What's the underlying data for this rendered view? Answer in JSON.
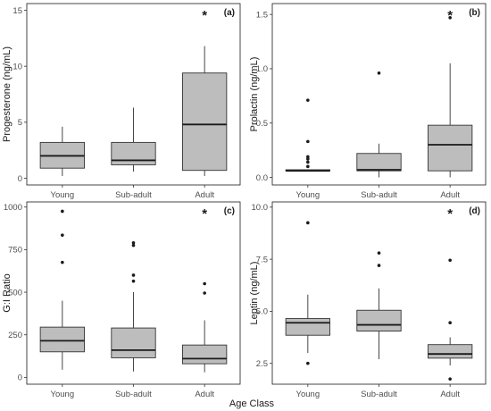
{
  "figure": {
    "xlabel": "Age Class"
  },
  "chart_data": [
    {
      "type": "box",
      "panel": "(a)",
      "ylabel": "Progesterone (ng/mL)",
      "ylim": [
        -0.6,
        15.6
      ],
      "yticks": [
        0,
        5,
        10,
        15
      ],
      "categories": [
        "Young",
        "Sub-adult",
        "Adult"
      ],
      "boxes": [
        {
          "min": 0.2,
          "q1": 0.9,
          "median": 2.0,
          "q3": 3.2,
          "max": 4.6,
          "outliers": []
        },
        {
          "min": 0.6,
          "q1": 1.2,
          "median": 1.6,
          "q3": 3.2,
          "max": 6.3,
          "outliers": []
        },
        {
          "min": 0.2,
          "q1": 0.7,
          "median": 4.8,
          "q3": 9.4,
          "max": 11.8,
          "outliers": []
        }
      ],
      "significance": [
        {
          "category": "Adult",
          "label": "*"
        }
      ]
    },
    {
      "type": "box",
      "panel": "(b)",
      "ylabel": "Prolactin (ng/mL)",
      "ylim": [
        -0.07,
        1.6
      ],
      "yticks": [
        0.0,
        0.5,
        1.0,
        1.5
      ],
      "yticklabels": [
        "0.0",
        "0.5",
        "1.0",
        "1.5"
      ],
      "categories": [
        "Young",
        "Sub-adult",
        "Adult"
      ],
      "boxes": [
        {
          "min": 0.06,
          "q1": 0.06,
          "median": 0.06,
          "q3": 0.07,
          "max": 0.07,
          "outliers": [
            0.1,
            0.14,
            0.17,
            0.19,
            0.33,
            0.71
          ]
        },
        {
          "min": 0.0,
          "q1": 0.06,
          "median": 0.07,
          "q3": 0.22,
          "max": 0.31,
          "outliers": [
            0.96
          ]
        },
        {
          "min": 0.0,
          "q1": 0.06,
          "median": 0.3,
          "q3": 0.48,
          "max": 1.05,
          "outliers": [
            1.47
          ]
        }
      ],
      "significance": [
        {
          "category": "Adult",
          "label": "*"
        }
      ]
    },
    {
      "type": "box",
      "panel": "(c)",
      "ylabel": "G:I Ratio",
      "ylim": [
        -40,
        1030
      ],
      "yticks": [
        0,
        250,
        500,
        750,
        1000
      ],
      "categories": [
        "Young",
        "Sub-adult",
        "Adult"
      ],
      "boxes": [
        {
          "min": 45,
          "q1": 150,
          "median": 215,
          "q3": 295,
          "max": 450,
          "outliers": [
            675,
            835,
            975
          ]
        },
        {
          "min": 35,
          "q1": 115,
          "median": 160,
          "q3": 290,
          "max": 500,
          "outliers": [
            565,
            600,
            775,
            790
          ]
        },
        {
          "min": 30,
          "q1": 80,
          "median": 110,
          "q3": 190,
          "max": 335,
          "outliers": [
            495,
            550
          ]
        }
      ],
      "significance": [
        {
          "category": "Adult",
          "label": "*"
        }
      ]
    },
    {
      "type": "box",
      "panel": "(d)",
      "ylabel": "Leptin (ng/mL)",
      "ylim": [
        1.5,
        10.25
      ],
      "yticks": [
        2.5,
        5.0,
        7.5,
        10.0
      ],
      "yticklabels": [
        "2.5",
        "5.0",
        "7.5",
        "10.0"
      ],
      "categories": [
        "Young",
        "Sub-adult",
        "Adult"
      ],
      "boxes": [
        {
          "min": 3.0,
          "q1": 3.85,
          "median": 4.45,
          "q3": 4.65,
          "max": 5.8,
          "outliers": [
            2.5,
            9.25
          ]
        },
        {
          "min": 2.7,
          "q1": 4.05,
          "median": 4.35,
          "q3": 5.05,
          "max": 6.1,
          "outliers": [
            7.2,
            7.8
          ]
        },
        {
          "min": 2.4,
          "q1": 2.75,
          "median": 2.95,
          "q3": 3.4,
          "max": 3.75,
          "outliers": [
            1.75,
            4.45,
            7.45
          ]
        }
      ],
      "significance": [
        {
          "category": "Adult",
          "label": "*"
        }
      ]
    }
  ]
}
